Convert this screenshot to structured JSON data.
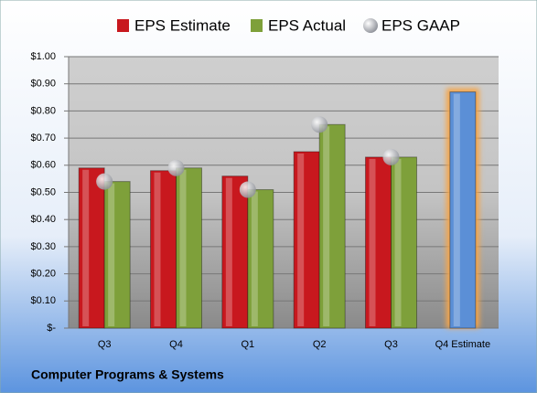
{
  "chart_data": {
    "type": "bar",
    "title": "Computer Programs & Systems",
    "categories": [
      "Q3",
      "Q4",
      "Q1",
      "Q2",
      "Q3",
      "Q4 Estimate"
    ],
    "series": [
      {
        "name": "EPS Estimate",
        "color": "#c8181e",
        "values": [
          0.59,
          0.58,
          0.56,
          0.65,
          0.63,
          0.87
        ]
      },
      {
        "name": "EPS Actual",
        "color": "#7ea03a",
        "values": [
          0.54,
          0.59,
          0.51,
          0.75,
          0.63,
          null
        ]
      },
      {
        "name": "EPS GAAP",
        "color": "#a8aab0",
        "marker": "sphere",
        "values": [
          0.54,
          0.59,
          0.51,
          0.75,
          0.63,
          null
        ]
      }
    ],
    "highlight": {
      "series": 0,
      "index": 5,
      "color": "#5b8fd6",
      "glow": "#f5a54a"
    },
    "ylim": [
      0,
      1
    ],
    "yticks": [
      {
        "value": 0,
        "label": "$-"
      },
      {
        "value": 0.1,
        "label": "$0.10"
      },
      {
        "value": 0.2,
        "label": "$0.20"
      },
      {
        "value": 0.3,
        "label": "$0.30"
      },
      {
        "value": 0.4,
        "label": "$0.40"
      },
      {
        "value": 0.5,
        "label": "$0.50"
      },
      {
        "value": 0.6,
        "label": "$0.60"
      },
      {
        "value": 0.7,
        "label": "$0.70"
      },
      {
        "value": 0.8,
        "label": "$0.80"
      },
      {
        "value": 0.9,
        "label": "$0.90"
      },
      {
        "value": 1,
        "label": "$1.00"
      }
    ],
    "grid": true
  }
}
